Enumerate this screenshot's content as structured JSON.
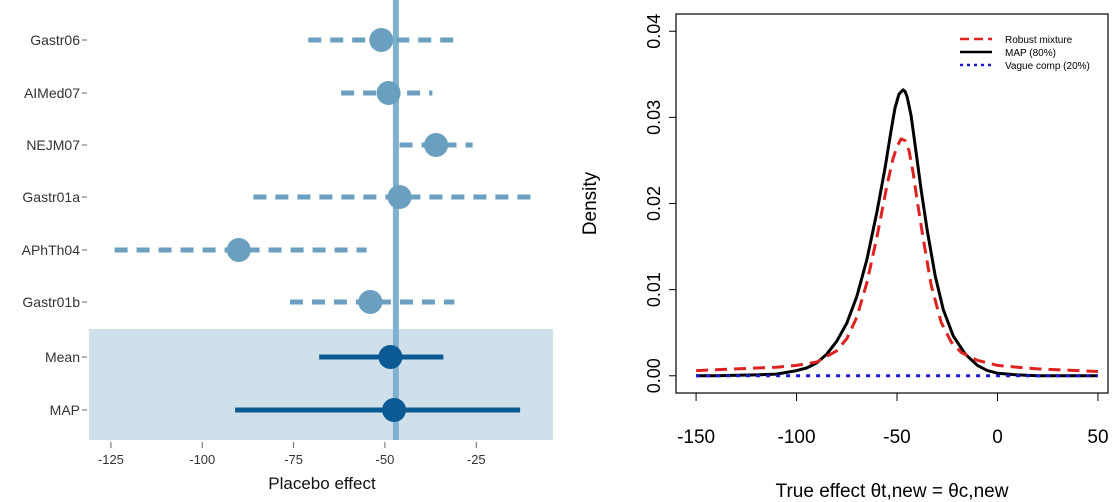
{
  "chart_data": [
    {
      "type": "forest",
      "xlabel": "Placebo effect",
      "ylabel": "",
      "xlim": [
        -131,
        -4
      ],
      "xticks": [
        -125,
        -100,
        -75,
        -50,
        -25
      ],
      "reference_line": -47,
      "colors": {
        "study": "#6a9fbf",
        "summary": "#0b5a94",
        "refline": "#7fb0d0",
        "band": "#d0e0eb",
        "axis": "#666666",
        "text": "#333333"
      },
      "studies": [
        {
          "name": "Gastr06",
          "estimate": -51,
          "lower": -71,
          "upper": -31
        },
        {
          "name": "AIMed07",
          "estimate": -49,
          "lower": -62,
          "upper": -37
        },
        {
          "name": "NEJM07",
          "estimate": -36,
          "lower": -46,
          "upper": -26
        },
        {
          "name": "Gastr01a",
          "estimate": -46,
          "lower": -86,
          "upper": -10
        },
        {
          "name": "APhTh04",
          "estimate": -90,
          "lower": -124,
          "upper": -55
        },
        {
          "name": "Gastr01b",
          "estimate": -54,
          "lower": -76,
          "upper": -31
        }
      ],
      "summary": [
        {
          "name": "Mean",
          "estimate": -48.5,
          "lower": -68,
          "upper": -34
        },
        {
          "name": "MAP",
          "estimate": -47.5,
          "lower": -91,
          "upper": -13
        }
      ]
    },
    {
      "type": "line",
      "xlabel": "True effect θt,new = θc,new",
      "ylabel": "Density",
      "xlim": [
        -160,
        55
      ],
      "ylim": [
        -0.002,
        0.042
      ],
      "xticks": [
        -150,
        -100,
        -50,
        0,
        50
      ],
      "yticks": [
        "0.00",
        "0.01",
        "0.02",
        "0.03",
        "0.04"
      ],
      "legend_position": "top-right",
      "series": [
        {
          "name": "Robust mixture",
          "color": "#dd2222",
          "style": "dashed",
          "x": [
            -150,
            -140,
            -130,
            -120,
            -110,
            -100,
            -90,
            -80,
            -75,
            -70,
            -65,
            -60,
            -55,
            -52,
            -50,
            -48,
            -46,
            -44,
            -42,
            -40,
            -37,
            -33,
            -28,
            -23,
            -18,
            -10,
            0,
            10,
            20,
            30,
            40,
            50
          ],
          "y": [
            0.0006,
            0.0007,
            0.0008,
            0.0009,
            0.001,
            0.0012,
            0.0016,
            0.0029,
            0.0043,
            0.0068,
            0.0108,
            0.0161,
            0.0221,
            0.0252,
            0.0266,
            0.0275,
            0.0273,
            0.0261,
            0.0236,
            0.0204,
            0.016,
            0.0105,
            0.0062,
            0.0039,
            0.0027,
            0.0018,
            0.0012,
            0.001,
            0.0008,
            0.0007,
            0.0006,
            0.0005
          ]
        },
        {
          "name": "MAP (80%)",
          "color": "#000000",
          "style": "solid",
          "x": [
            -150,
            -140,
            -130,
            -120,
            -110,
            -100,
            -95,
            -90,
            -85,
            -80,
            -75,
            -70,
            -65,
            -60,
            -56,
            -53,
            -51,
            -49,
            -47,
            -46,
            -45,
            -43,
            -41,
            -38,
            -35,
            -31,
            -27,
            -22,
            -16,
            -10,
            -5,
            0,
            10,
            20,
            30,
            40,
            50
          ],
          "y": [
            0.0,
            0.0,
            5e-05,
            0.0001,
            0.0002,
            0.0006,
            0.0009,
            0.0015,
            0.0025,
            0.004,
            0.0061,
            0.0092,
            0.0135,
            0.019,
            0.0241,
            0.0284,
            0.0311,
            0.0327,
            0.0332,
            0.033,
            0.0324,
            0.0302,
            0.0268,
            0.0216,
            0.0169,
            0.0116,
            0.0077,
            0.0046,
            0.0025,
            0.0012,
            0.0006,
            0.0003,
            0.0001,
            0.0,
            0.0,
            0.0,
            0.0
          ]
        },
        {
          "name": "Vague comp (20%)",
          "color": "#1a1acc",
          "style": "dotted",
          "x": [
            -150,
            50
          ],
          "y": [
            0.0,
            0.0
          ]
        }
      ]
    }
  ]
}
